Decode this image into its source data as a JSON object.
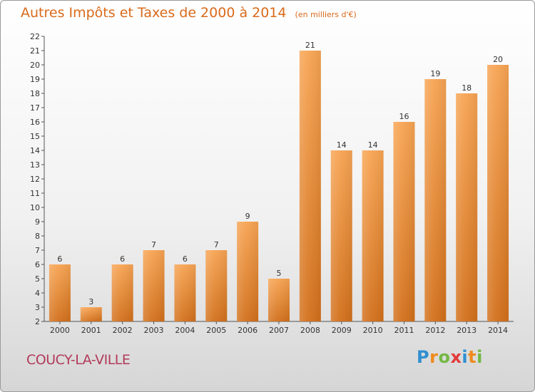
{
  "header": {
    "title": "Autres Impôts et Taxes de 2000 à 2014",
    "subtitle": "(en milliers d'€)"
  },
  "footer": {
    "city": "COUCY-LA-VILLE",
    "logo": "Proxiti"
  },
  "colors": {
    "title": "#d96a1a",
    "bar_top": "#f7a453",
    "bar_bottom": "#d2701b",
    "city": "#b23a5a"
  },
  "chart_data": {
    "type": "bar",
    "categories": [
      "2000",
      "2001",
      "2002",
      "2003",
      "2004",
      "2005",
      "2006",
      "2007",
      "2008",
      "2009",
      "2010",
      "2011",
      "2012",
      "2013",
      "2014"
    ],
    "values": [
      6,
      3,
      6,
      7,
      6,
      7,
      9,
      5,
      21,
      14,
      14,
      16,
      19,
      18,
      20
    ],
    "ylim": [
      2,
      22
    ],
    "yticks": [
      2,
      3,
      4,
      5,
      6,
      7,
      8,
      9,
      10,
      11,
      12,
      13,
      14,
      15,
      16,
      17,
      18,
      19,
      20,
      21,
      22
    ],
    "grid": false,
    "data_labels": true
  }
}
